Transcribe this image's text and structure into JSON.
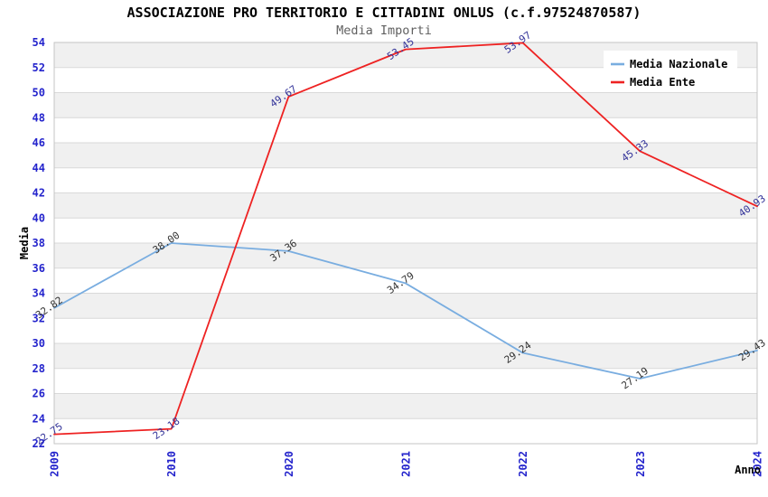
{
  "header": {
    "title": "ASSOCIAZIONE PRO TERRITORIO E CITTADINI ONLUS (c.f.97524870587)",
    "subtitle": "Media Importi"
  },
  "chart_data": {
    "type": "line",
    "categories": [
      "2009",
      "2010",
      "2020",
      "2021",
      "2022",
      "2023",
      "2024"
    ],
    "series": [
      {
        "name": "Media Nazionale",
        "color": "#79ade0",
        "label_color": "#333333",
        "values": [
          32.82,
          38.0,
          37.36,
          34.79,
          29.24,
          27.19,
          29.43
        ]
      },
      {
        "name": "Media Ente",
        "color": "#ee2222",
        "label_color": "#333399",
        "values": [
          22.75,
          23.18,
          49.67,
          53.45,
          53.97,
          45.33,
          40.93
        ]
      }
    ],
    "xlabel": "Anno",
    "ylabel": "Media",
    "ylim": [
      22,
      54
    ],
    "ytick_step": 2,
    "grid": true,
    "legend_position": "top-right",
    "colors": {
      "tick_text": "#2424cc",
      "grid_line": "#d9d9d9",
      "plot_border": "#c4c4c4",
      "band_gray": "#f0f0f0",
      "band_white": "#ffffff",
      "legend_bg": "#ffffff"
    }
  }
}
